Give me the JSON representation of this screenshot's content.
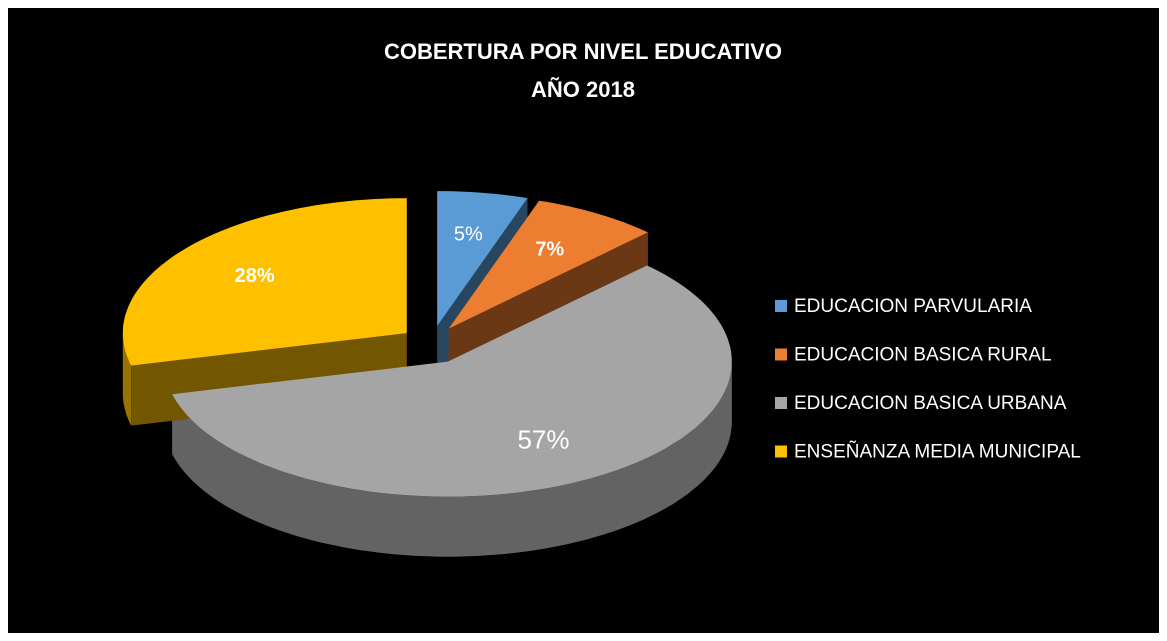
{
  "chart_data": {
    "type": "pie",
    "title": "COBERTURA POR NIVEL EDUCATIVO",
    "subtitle": "AÑO 2018",
    "categories": [
      "EDUCACION PARVULARIA",
      "EDUCACION BASICA RURAL",
      "EDUCACION BASICA URBANA",
      "ENSEÑANZA MEDIA MUNICIPAL"
    ],
    "values": [
      5,
      7,
      57,
      28
    ],
    "value_labels": [
      "5%",
      "7%",
      "57%",
      "28%"
    ],
    "colors": [
      "#5b9bd5",
      "#ed7d31",
      "#a5a5a5",
      "#ffc000"
    ],
    "legend": "right"
  }
}
